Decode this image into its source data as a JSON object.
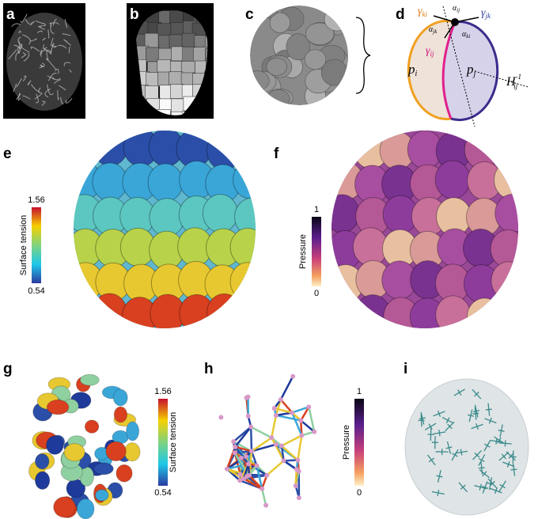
{
  "panels": {
    "a": {
      "letter": "a"
    },
    "b": {
      "letter": "b"
    },
    "c": {
      "letter": "c"
    },
    "d": {
      "letter": "d",
      "gamma_ki": {
        "main": "γ",
        "sub": "ki"
      },
      "gamma_jk": {
        "main": "γ",
        "sub": "jk"
      },
      "gamma_ij": {
        "main": "γ",
        "sub": "ij"
      },
      "alpha_ij": {
        "main": "α",
        "sub": "ij"
      },
      "alpha_jk": {
        "main": "α",
        "sub": "jk"
      },
      "alpha_ki": {
        "main": "α",
        "sub": "ki"
      },
      "p_i": {
        "main": "p",
        "sub": "i"
      },
      "p_j": {
        "main": "p",
        "sub": "j"
      },
      "H": {
        "main": "H",
        "sub": "ij",
        "sup": "-1"
      }
    },
    "e": {
      "letter": "e",
      "colorbar": {
        "label": "Surface tension",
        "max": "1.56",
        "min": "0.54"
      }
    },
    "f": {
      "letter": "f",
      "colorbar": {
        "label": "Pressure",
        "max": "1",
        "min": "0"
      }
    },
    "g": {
      "letter": "g",
      "colorbar": {
        "label": "Surface tension",
        "max": "1.56",
        "min": "0.54"
      }
    },
    "h": {
      "letter": "h",
      "colorbar": {
        "label": "Pressure",
        "max": "1",
        "min": "0"
      }
    },
    "i": {
      "letter": "i"
    }
  }
}
